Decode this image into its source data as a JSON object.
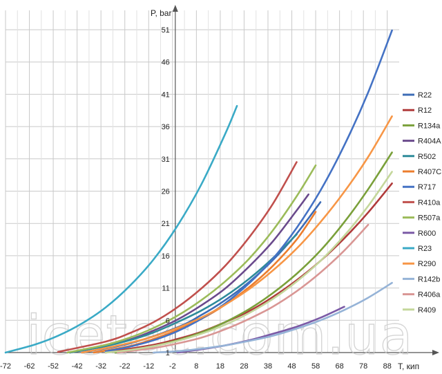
{
  "chart_data": {
    "type": "line",
    "xlabel": "T, кип",
    "ylabel": "P, bar",
    "xlim": [
      -72,
      93
    ],
    "ylim": [
      1,
      54
    ],
    "x_ticks": [
      -72,
      -62,
      -52,
      -42,
      -32,
      -22,
      -12,
      -2,
      8,
      18,
      28,
      38,
      48,
      58,
      68,
      78,
      88
    ],
    "y_ticks": [
      1,
      6,
      11,
      16,
      21,
      26,
      31,
      36,
      41,
      46,
      51
    ],
    "grid": true,
    "legend_position": "right",
    "watermark": "icetec.com.ua",
    "series": [
      {
        "name": "R22",
        "color": "#3d6cb6",
        "x": [
          -40,
          -20,
          0,
          10,
          20,
          30,
          40,
          50,
          60
        ],
        "y": [
          1.0,
          2.4,
          4.9,
          6.8,
          9.1,
          11.9,
          15.3,
          19.4,
          24.3
        ]
      },
      {
        "name": "R12",
        "color": "#b03a3a",
        "x": [
          -30,
          -10,
          0,
          10,
          20,
          30,
          40,
          50,
          60,
          70,
          80,
          90
        ],
        "y": [
          1.0,
          2.2,
          3.1,
          4.2,
          5.7,
          7.4,
          9.6,
          12.2,
          15.2,
          18.7,
          22.7,
          27.2
        ]
      },
      {
        "name": "R134a",
        "color": "#7aa03a",
        "x": [
          -26,
          -10,
          0,
          10,
          20,
          30,
          40,
          50,
          60,
          70,
          80,
          90
        ],
        "y": [
          1.0,
          2.0,
          2.9,
          4.1,
          5.7,
          7.7,
          10.2,
          13.2,
          16.8,
          21.2,
          26.3,
          32.0
        ]
      },
      {
        "name": "R404A",
        "color": "#6a4a8c",
        "x": [
          -45,
          -30,
          -20,
          -10,
          0,
          10,
          20,
          30,
          40,
          50,
          55
        ],
        "y": [
          1.0,
          2.0,
          3.0,
          4.4,
          6.1,
          8.3,
          10.9,
          14.3,
          18.2,
          23.0,
          25.5
        ]
      },
      {
        "name": "R502",
        "color": "#2e8b9a",
        "x": [
          -45,
          -30,
          -20,
          -10,
          0,
          10,
          20,
          30,
          40,
          50
        ],
        "y": [
          1.0,
          2.0,
          2.9,
          4.1,
          5.7,
          7.5,
          9.7,
          12.4,
          15.6,
          19.3
        ]
      },
      {
        "name": "R407C",
        "color": "#ec7d2d",
        "x": [
          -35,
          -20,
          -10,
          0,
          10,
          20,
          30,
          40,
          50,
          58
        ],
        "y": [
          1.0,
          2.0,
          3.1,
          4.5,
          6.2,
          8.4,
          11.1,
          14.4,
          18.5,
          22.8
        ]
      },
      {
        "name": "R717",
        "color": "#4472c4",
        "x": [
          -30,
          -20,
          -10,
          0,
          10,
          20,
          30,
          40,
          50,
          60,
          70,
          80,
          90
        ],
        "y": [
          1.2,
          1.9,
          2.9,
          4.3,
          6.2,
          8.6,
          11.7,
          15.5,
          20.3,
          26.1,
          33.1,
          41.3,
          50.9
        ]
      },
      {
        "name": "R410a",
        "color": "#c0504d",
        "x": [
          -50,
          -30,
          -20,
          -10,
          0,
          10,
          20,
          30,
          40,
          50
        ],
        "y": [
          1.1,
          2.7,
          4.0,
          5.7,
          8.0,
          10.9,
          14.4,
          18.8,
          24.0,
          30.5
        ]
      },
      {
        "name": "R507a",
        "color": "#9bbb59",
        "x": [
          -46,
          -30,
          -20,
          -10,
          0,
          10,
          20,
          30,
          40,
          50,
          58
        ],
        "y": [
          1.0,
          2.2,
          3.3,
          4.8,
          6.7,
          9.1,
          12.0,
          15.5,
          19.9,
          25.2,
          30.0
        ]
      },
      {
        "name": "R600",
        "color": "#7b5aa6",
        "x": [
          0,
          10,
          20,
          30,
          40,
          50,
          60,
          70
        ],
        "y": [
          1.0,
          1.5,
          2.1,
          2.9,
          3.9,
          5.0,
          6.4,
          8.1
        ]
      },
      {
        "name": "R23",
        "color": "#3aaac6",
        "x": [
          -72,
          -60,
          -50,
          -40,
          -30,
          -20,
          -10,
          0,
          10,
          20,
          25
        ],
        "y": [
          1.0,
          2.2,
          3.6,
          5.5,
          8.0,
          11.3,
          15.4,
          20.6,
          27.0,
          34.8,
          39.2
        ]
      },
      {
        "name": "R290",
        "color": "#f79646",
        "x": [
          -40,
          -30,
          -20,
          -10,
          0,
          10,
          20,
          30,
          40,
          50,
          60,
          70,
          80,
          90
        ],
        "y": [
          1.0,
          1.7,
          2.5,
          3.5,
          4.8,
          6.4,
          8.4,
          10.8,
          13.7,
          17.1,
          21.2,
          25.9,
          31.3,
          37.6
        ]
      },
      {
        "name": "R142b",
        "color": "#95b3d7",
        "x": [
          -10,
          0,
          10,
          20,
          30,
          40,
          50,
          60,
          70,
          80,
          90
        ],
        "y": [
          1.0,
          1.2,
          1.6,
          2.1,
          2.8,
          3.6,
          4.7,
          6.0,
          7.6,
          9.5,
          11.8
        ]
      },
      {
        "name": "R406a",
        "color": "#d99694",
        "x": [
          -25,
          -10,
          0,
          10,
          20,
          30,
          40,
          50,
          60,
          70,
          80
        ],
        "y": [
          1.0,
          1.7,
          2.4,
          3.3,
          4.6,
          6.2,
          8.1,
          10.5,
          13.4,
          16.8,
          20.8
        ]
      },
      {
        "name": "R409",
        "color": "#c4d79b",
        "x": [
          -30,
          -20,
          -10,
          0,
          10,
          20,
          30,
          40,
          50,
          60,
          70,
          80,
          90
        ],
        "y": [
          1.0,
          1.4,
          2.0,
          2.8,
          3.9,
          5.3,
          7.1,
          9.3,
          12.0,
          15.2,
          19.1,
          23.7,
          29.0
        ]
      }
    ]
  }
}
